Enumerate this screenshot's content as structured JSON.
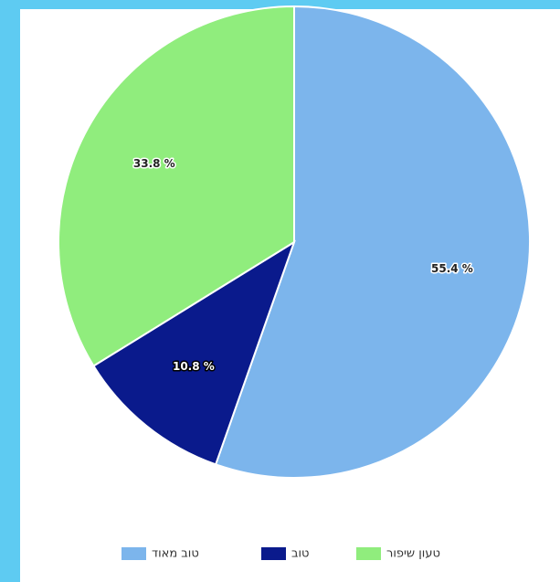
{
  "chart_data": {
    "type": "pie",
    "categories": [
      "טוב מאוד",
      "טוב",
      "טעון שיפור"
    ],
    "values": [
      55.4,
      10.8,
      33.8
    ],
    "value_labels": [
      "55.4 %",
      "10.8 %",
      "33.8 %"
    ],
    "colors": [
      "#7cb5ec",
      "#0a1a8c",
      "#90ed7d"
    ],
    "legend": "bottom"
  }
}
